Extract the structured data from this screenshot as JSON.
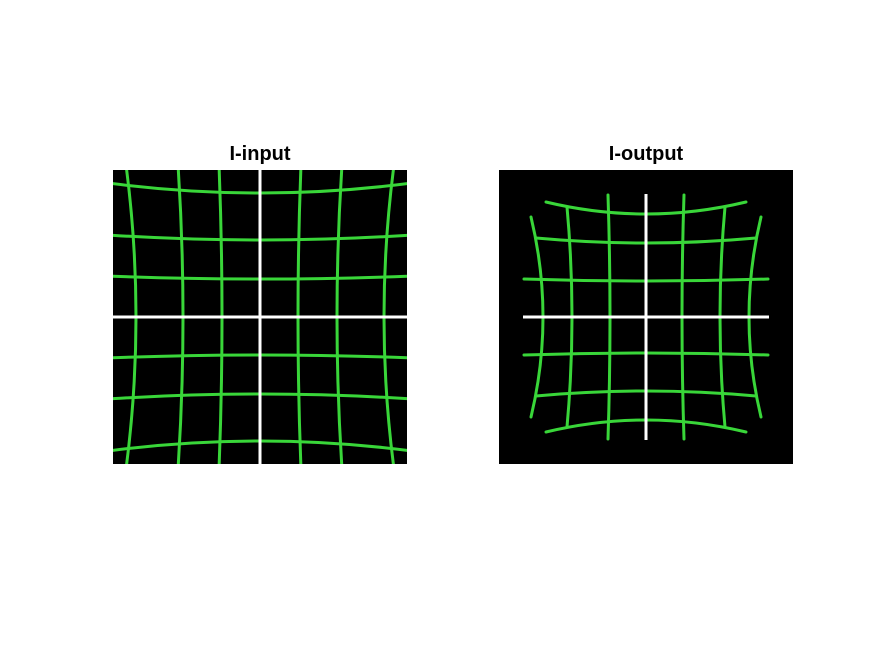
{
  "figure": {
    "left_panel": {
      "title": "I-input"
    },
    "right_panel": {
      "title": "I-output"
    }
  },
  "colors": {
    "background": "#ffffff",
    "image_background": "#000000",
    "grid_line": "#39d639",
    "axis_line": "#ffffff"
  },
  "images": {
    "input": {
      "description_type": "barrel-distorted green grid on black",
      "distortion": "pincushion-outward"
    },
    "output": {
      "description_type": "corrected green grid on black",
      "distortion": "barrel-inward"
    }
  }
}
